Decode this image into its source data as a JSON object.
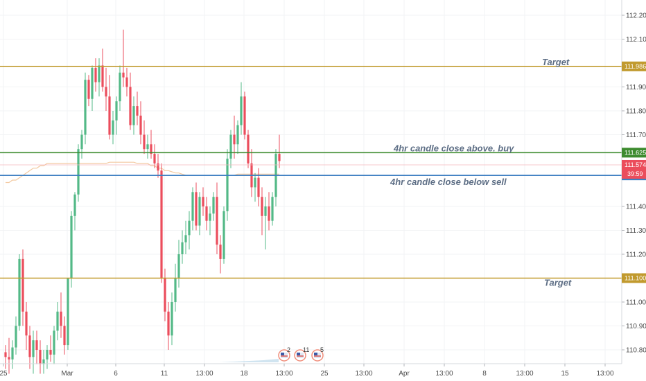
{
  "chart_data": {
    "type": "candlestick",
    "colors": {
      "up": "#53b987",
      "down": "#eb4d5c",
      "target": "#c19a2e",
      "buy": "#3d8b2f",
      "sell": "#3c7ec1",
      "price_tag": "#eb4d5c",
      "ma_line": "#f3c9a0"
    },
    "y_axis": {
      "ticks": [
        "112.200",
        "112.100",
        "111.900",
        "111.800",
        "111.700",
        "111.400",
        "111.300",
        "111.200",
        "111.000",
        "110.900",
        "110.800"
      ],
      "range": [
        110.76,
        112.24
      ]
    },
    "x_axis": {
      "ticks": [
        "25",
        "Mar",
        "6",
        "11",
        "13:00",
        "18",
        "13:00",
        "25",
        "13:00",
        "Apr",
        "13:00",
        "8",
        "13:00",
        "15",
        "13:00"
      ]
    },
    "levels": [
      {
        "name": "target_upper",
        "price": 111.986,
        "label": "111.986",
        "annotation": "Target",
        "color": "#c19a2e"
      },
      {
        "name": "buy_level",
        "price": 111.625,
        "label": "111.625",
        "annotation": "4hr candle close above. buy",
        "color": "#3d8b2f"
      },
      {
        "name": "sell_level",
        "price": 111.53,
        "label": "111.530",
        "annotation": "4hr candle close below sell",
        "color": "#3c7ec1"
      },
      {
        "name": "target_lower",
        "price": 111.1,
        "label": "111.100",
        "annotation": "Target",
        "color": "#c19a2e"
      }
    ],
    "current_price": {
      "price": 111.574,
      "label": "111.574",
      "countdown": "39:59"
    },
    "events": [
      {
        "flag": "us-flag-icon",
        "count": "2"
      },
      {
        "flag": "us-flag-icon",
        "count": "11"
      },
      {
        "flag": "us-flag-icon",
        "count": "5"
      }
    ],
    "candles": [
      [
        110.79,
        110.82,
        110.72,
        110.77
      ],
      [
        110.77,
        110.85,
        110.7,
        110.76
      ],
      [
        110.76,
        110.84,
        110.72,
        110.81
      ],
      [
        110.81,
        110.94,
        110.78,
        110.9
      ],
      [
        110.9,
        111.2,
        110.88,
        111.18
      ],
      [
        111.18,
        111.22,
        110.9,
        110.96
      ],
      [
        110.96,
        111.0,
        110.8,
        110.86
      ],
      [
        110.86,
        110.9,
        110.72,
        110.77
      ],
      [
        110.77,
        110.88,
        110.7,
        110.84
      ],
      [
        110.84,
        110.88,
        110.74,
        110.8
      ],
      [
        110.8,
        110.84,
        110.7,
        110.74
      ],
      [
        110.74,
        110.8,
        110.7,
        110.76
      ],
      [
        110.76,
        110.82,
        110.72,
        110.8
      ],
      [
        110.8,
        110.86,
        110.75,
        110.78
      ],
      [
        110.78,
        110.9,
        110.74,
        110.88
      ],
      [
        110.88,
        111.0,
        110.84,
        110.96
      ],
      [
        110.96,
        111.04,
        110.85,
        110.9
      ],
      [
        110.9,
        110.94,
        110.78,
        110.82
      ],
      [
        110.82,
        111.1,
        110.8,
        111.1
      ],
      [
        111.1,
        111.38,
        111.06,
        111.36
      ],
      [
        111.36,
        111.46,
        111.3,
        111.45
      ],
      [
        111.45,
        111.66,
        111.42,
        111.64
      ],
      [
        111.64,
        111.72,
        111.6,
        111.7
      ],
      [
        111.7,
        111.96,
        111.66,
        111.93
      ],
      [
        111.93,
        111.95,
        111.82,
        111.85
      ],
      [
        111.85,
        111.99,
        111.8,
        111.98
      ],
      [
        111.98,
        112.02,
        111.88,
        111.92
      ],
      [
        111.92,
        112.02,
        111.86,
        111.99
      ],
      [
        111.99,
        112.06,
        111.88,
        111.9
      ],
      [
        111.9,
        111.98,
        111.8,
        111.86
      ],
      [
        111.86,
        111.95,
        111.68,
        111.7
      ],
      [
        111.7,
        111.8,
        111.66,
        111.76
      ],
      [
        111.76,
        111.86,
        111.7,
        111.84
      ],
      [
        111.84,
        111.99,
        111.8,
        111.96
      ],
      [
        111.96,
        112.14,
        111.9,
        111.94
      ],
      [
        111.94,
        111.98,
        111.86,
        111.9
      ],
      [
        111.9,
        111.96,
        111.72,
        111.74
      ],
      [
        111.74,
        111.86,
        111.7,
        111.82
      ],
      [
        111.82,
        111.88,
        111.74,
        111.78
      ],
      [
        111.78,
        111.84,
        111.66,
        111.7
      ],
      [
        111.7,
        111.76,
        111.62,
        111.64
      ],
      [
        111.64,
        111.7,
        111.6,
        111.66
      ],
      [
        111.66,
        111.72,
        111.6,
        111.62
      ],
      [
        111.62,
        111.66,
        111.56,
        111.58
      ],
      [
        111.58,
        111.62,
        111.52,
        111.55
      ],
      [
        111.55,
        111.58,
        111.08,
        111.1
      ],
      [
        111.1,
        111.14,
        110.92,
        110.96
      ],
      [
        110.96,
        111.0,
        110.8,
        110.86
      ],
      [
        110.86,
        111.04,
        110.82,
        111.0
      ],
      [
        111.0,
        111.16,
        110.96,
        111.1
      ],
      [
        111.1,
        111.26,
        111.06,
        111.2
      ],
      [
        111.2,
        111.3,
        111.16,
        111.25
      ],
      [
        111.25,
        111.34,
        111.2,
        111.28
      ],
      [
        111.28,
        111.38,
        111.22,
        111.34
      ],
      [
        111.34,
        111.48,
        111.3,
        111.46
      ],
      [
        111.46,
        111.5,
        111.3,
        111.32
      ],
      [
        111.32,
        111.46,
        111.28,
        111.44
      ],
      [
        111.44,
        111.48,
        111.36,
        111.4
      ],
      [
        111.4,
        111.44,
        111.3,
        111.34
      ],
      [
        111.34,
        111.4,
        111.28,
        111.37
      ],
      [
        111.37,
        111.46,
        111.34,
        111.44
      ],
      [
        111.44,
        111.5,
        111.2,
        111.24
      ],
      [
        111.24,
        111.28,
        111.12,
        111.18
      ],
      [
        111.18,
        111.4,
        111.16,
        111.38
      ],
      [
        111.38,
        111.64,
        111.34,
        111.6
      ],
      [
        111.6,
        111.72,
        111.56,
        111.7
      ],
      [
        111.7,
        111.78,
        111.6,
        111.66
      ],
      [
        111.66,
        111.76,
        111.62,
        111.74
      ],
      [
        111.74,
        111.92,
        111.7,
        111.86
      ],
      [
        111.86,
        111.88,
        111.68,
        111.7
      ],
      [
        111.7,
        111.72,
        111.56,
        111.58
      ],
      [
        111.58,
        111.64,
        111.44,
        111.48
      ],
      [
        111.48,
        111.54,
        111.42,
        111.52
      ],
      [
        111.52,
        111.56,
        111.4,
        111.44
      ],
      [
        111.44,
        111.48,
        111.28,
        111.36
      ],
      [
        111.36,
        111.44,
        111.22,
        111.4
      ],
      [
        111.4,
        111.46,
        111.3,
        111.34
      ],
      [
        111.34,
        111.46,
        111.32,
        111.44
      ],
      [
        111.44,
        111.64,
        111.4,
        111.62
      ],
      [
        111.62,
        111.7,
        111.56,
        111.59
      ]
    ],
    "ma": [
      111.5,
      111.5,
      111.51,
      111.51,
      111.52,
      111.53,
      111.54,
      111.55,
      111.56,
      111.56,
      111.57,
      111.57,
      111.58,
      111.58,
      111.58,
      111.58,
      111.58,
      111.58,
      111.58,
      111.58,
      111.58,
      111.58,
      111.58,
      111.58,
      111.58,
      111.58,
      111.58,
      111.58,
      111.58,
      111.58,
      111.585,
      111.585,
      111.585,
      111.585,
      111.585,
      111.585,
      111.585,
      111.585,
      111.58,
      111.58,
      111.58,
      111.58,
      111.57,
      111.57,
      111.56,
      111.56,
      111.55,
      111.55,
      111.545,
      111.54,
      111.54,
      111.535,
      111.53,
      111.53,
      111.53,
      111.53,
      111.53,
      111.53,
      111.53,
      111.53,
      111.53,
      111.53,
      111.53,
      111.53,
      111.53,
      111.53,
      111.53,
      111.535,
      111.535,
      111.535,
      111.535,
      111.535,
      111.535,
      111.535,
      111.535,
      111.535,
      111.535,
      111.535,
      111.535,
      111.535
    ]
  }
}
